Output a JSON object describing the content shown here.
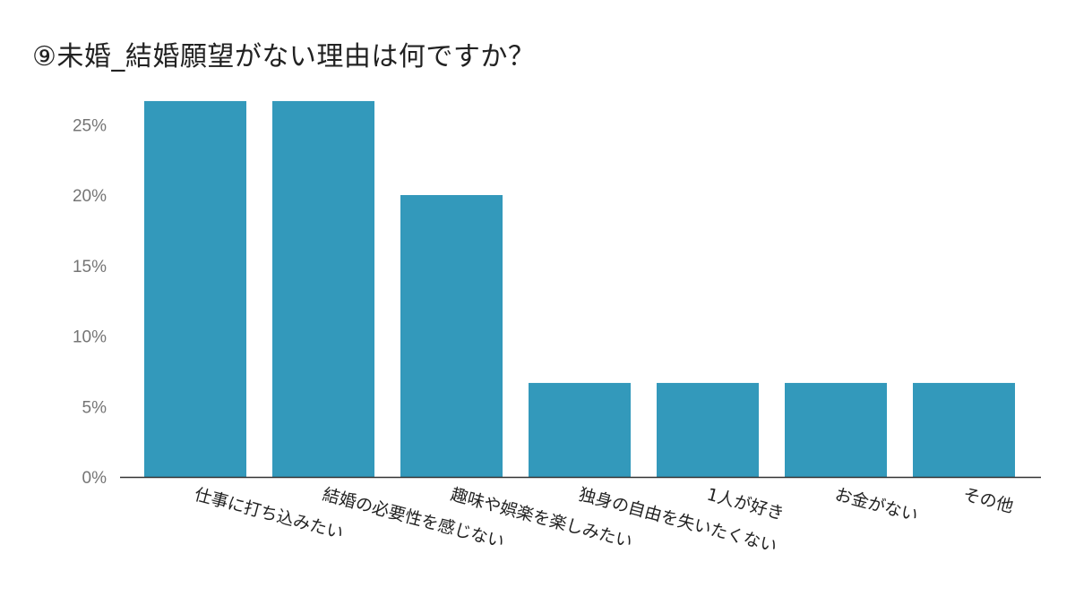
{
  "chart_data": {
    "type": "bar",
    "title": "⑨未婚_結婚願望がない理由は何ですか？",
    "xlabel": "",
    "ylabel": "",
    "categories": [
      "仕事に打ち込みたい",
      "結婚の必要性を感じない",
      "趣味や娯楽を楽しみたい",
      "独身の自由を失いたくない",
      "1人が好き",
      "お金がない",
      "その他"
    ],
    "values": [
      26.67,
      26.67,
      20.0,
      6.67,
      6.67,
      6.67,
      6.67
    ],
    "ylim": [
      0,
      27
    ],
    "yticks": [
      0,
      5,
      10,
      15,
      20,
      25
    ],
    "ytick_labels": [
      "0%",
      "5%",
      "10%",
      "15%",
      "20%",
      "25%"
    ],
    "bar_color": "#3399bb",
    "grid": false,
    "legend": "none"
  }
}
